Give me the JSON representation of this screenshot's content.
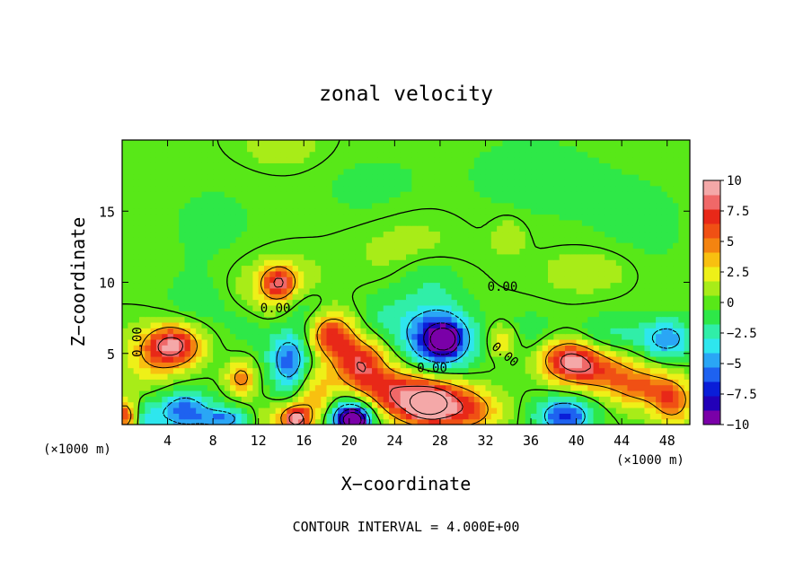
{
  "chart_data": {
    "type": "heatmap",
    "title": "zonal velocity",
    "xlabel": "X−coordinate",
    "ylabel": "Z−coordinate",
    "x_unit_left": "(×1000 m)",
    "x_unit_right": "(×1000 m)",
    "footer": "CONTOUR INTERVAL = 4.000E+00",
    "xlim": [
      0,
      50
    ],
    "ylim": [
      0,
      20
    ],
    "x_ticks": [
      4,
      8,
      12,
      16,
      20,
      24,
      28,
      32,
      36,
      40,
      44,
      48
    ],
    "x_tick_labels": [
      "4",
      "8",
      "12",
      "16",
      "20",
      "24",
      "28",
      "32",
      "36",
      "40",
      "44",
      "48"
    ],
    "y_ticks": [
      5,
      10,
      15
    ],
    "y_tick_labels": [
      "5",
      "10",
      "15"
    ],
    "contour_interval": 4.0,
    "contour_labels": [
      {
        "text": "0.00",
        "x": 1.7,
        "z": 5.8,
        "rotate": -90
      },
      {
        "text": "0.00",
        "x": 13.5,
        "z": 7.9
      },
      {
        "text": "0.00",
        "x": 27.3,
        "z": 3.7
      },
      {
        "text": "0.00",
        "x": 33.5,
        "z": 9.4
      },
      {
        "text": "0.00",
        "x": 33.5,
        "z": 4.7,
        "rotate": 40
      }
    ],
    "colorbar": {
      "min": -10,
      "max": 10,
      "tick_values": [
        10,
        7.5,
        5,
        2.5,
        0,
        -2.5,
        -5,
        -7.5,
        -10
      ],
      "tick_labels": [
        "10",
        "7.5",
        "5",
        "2.5",
        "0",
        "−2.5",
        "−5",
        "−7.5",
        "−10"
      ],
      "colors": [
        "#7a00a8",
        "#2200b8",
        "#0a1ed8",
        "#1e62f0",
        "#2aa6f5",
        "#2ee6ee",
        "#30eea8",
        "#2ee848",
        "#58e818",
        "#a8ec18",
        "#eef018",
        "#f8c010",
        "#f48410",
        "#f05014",
        "#e82818",
        "#f06868",
        "#f4a8a8"
      ]
    },
    "features": [
      {
        "x": 4.5,
        "z": 5.6,
        "sx": 1.7,
        "sz": 1.0,
        "v": 8.5
      },
      {
        "x": 2.5,
        "z": 4.5,
        "sx": 2.0,
        "sz": 1.4,
        "v": 2.5
      },
      {
        "x": 0.3,
        "z": 0.6,
        "sx": 0.8,
        "sz": 0.8,
        "v": 7
      },
      {
        "x": 5.5,
        "z": 1.0,
        "sx": 1.6,
        "sz": 1.0,
        "v": -6
      },
      {
        "x": 2.0,
        "z": 0.5,
        "sx": 1.2,
        "sz": 0.8,
        "v": -3
      },
      {
        "x": 10.5,
        "z": 3.3,
        "sx": 0.9,
        "sz": 0.8,
        "v": 5
      },
      {
        "x": 9.0,
        "z": 0.4,
        "sx": 1.4,
        "sz": 0.6,
        "v": -5
      },
      {
        "x": 14.8,
        "z": 4.5,
        "sx": 1.3,
        "sz": 1.5,
        "v": -6
      },
      {
        "x": 14.0,
        "z": 0.5,
        "sx": 1.6,
        "sz": 0.8,
        "v": 2
      },
      {
        "x": 15.3,
        "z": 0.4,
        "sx": 0.8,
        "sz": 0.6,
        "v": 8
      },
      {
        "x": 13.5,
        "z": 9.3,
        "sx": 2.5,
        "sz": 1.6,
        "v": 3.5
      },
      {
        "x": 13.8,
        "z": 10.0,
        "sx": 1.0,
        "sz": 0.8,
        "v": 6
      },
      {
        "x": 11.5,
        "z": 7.5,
        "sx": 2.0,
        "sz": 1.5,
        "v": -1.5
      },
      {
        "x": 16.0,
        "z": 8.3,
        "sx": 1.5,
        "sz": 1.0,
        "v": -2.5
      },
      {
        "x": 18.5,
        "z": 6.3,
        "sx": 1.4,
        "sz": 1.1,
        "v": 7
      },
      {
        "x": 21.0,
        "z": 4.2,
        "sx": 1.6,
        "sz": 1.3,
        "v": 7.5
      },
      {
        "x": 24.0,
        "z": 2.2,
        "sx": 2.0,
        "sz": 1.2,
        "v": 6
      },
      {
        "x": 20.2,
        "z": 0.5,
        "sx": 1.4,
        "sz": 0.9,
        "v": -9
      },
      {
        "x": 20.3,
        "z": 0.3,
        "sx": 0.6,
        "sz": 0.4,
        "v": -12
      },
      {
        "x": 23.5,
        "z": 7.5,
        "sx": 2.0,
        "sz": 1.4,
        "v": -2
      },
      {
        "x": 28.0,
        "z": 6.0,
        "sx": 2.0,
        "sz": 1.5,
        "v": -9
      },
      {
        "x": 28.3,
        "z": 6.0,
        "sx": 0.7,
        "sz": 0.5,
        "v": -14
      },
      {
        "x": 27.5,
        "z": 1.5,
        "sx": 2.2,
        "sz": 1.3,
        "v": 9
      },
      {
        "x": 27.0,
        "z": 1.5,
        "sx": 0.9,
        "sz": 0.5,
        "v": 12
      },
      {
        "x": 31.0,
        "z": 1.0,
        "sx": 1.8,
        "sz": 1.0,
        "v": 4
      },
      {
        "x": 27.0,
        "z": 10.2,
        "sx": 2.0,
        "sz": 1.2,
        "v": -2
      },
      {
        "x": 25.0,
        "z": 12.5,
        "sx": 3.5,
        "sz": 2.0,
        "v": 1.2
      },
      {
        "x": 33.5,
        "z": 6.0,
        "sx": 1.0,
        "sz": 0.8,
        "v": 3.5
      },
      {
        "x": 35.5,
        "z": 6.5,
        "sx": 2.0,
        "sz": 1.0,
        "v": -1.5
      },
      {
        "x": 39.3,
        "z": 4.6,
        "sx": 1.7,
        "sz": 1.0,
        "v": 7.5
      },
      {
        "x": 42.0,
        "z": 3.8,
        "sx": 2.2,
        "sz": 1.0,
        "v": 5
      },
      {
        "x": 46.0,
        "z": 2.6,
        "sx": 2.2,
        "sz": 1.0,
        "v": 5
      },
      {
        "x": 48.5,
        "z": 1.5,
        "sx": 1.2,
        "sz": 1.0,
        "v": 5
      },
      {
        "x": 39.0,
        "z": 0.6,
        "sx": 1.7,
        "sz": 0.9,
        "v": -7
      },
      {
        "x": 43.0,
        "z": 6.4,
        "sx": 2.2,
        "sz": 0.9,
        "v": -2
      },
      {
        "x": 48.0,
        "z": 6.0,
        "sx": 1.6,
        "sz": 1.0,
        "v": -5
      },
      {
        "x": 41.0,
        "z": 10.8,
        "sx": 2.5,
        "sz": 1.0,
        "v": 2
      },
      {
        "x": 34.0,
        "z": 13.2,
        "sx": 1.0,
        "sz": 0.9,
        "v": 2
      },
      {
        "x": 14.0,
        "z": 19.5,
        "sx": 2.5,
        "sz": 1.0,
        "v": 1.5
      },
      {
        "x": 22.0,
        "z": 16.5,
        "sx": 3.5,
        "sz": 2.0,
        "v": -1
      },
      {
        "x": 36.0,
        "z": 17.5,
        "sx": 5.0,
        "sz": 2.5,
        "v": -1
      },
      {
        "x": 8.0,
        "z": 14.0,
        "sx": 4.0,
        "sz": 3.0,
        "v": -0.8
      },
      {
        "x": 46.0,
        "z": 14.0,
        "sx": 4.0,
        "sz": 3.0,
        "v": -0.8
      },
      {
        "x": 6.5,
        "z": 8.5,
        "sx": 2.0,
        "sz": 1.5,
        "v": -1
      },
      {
        "x": 17.0,
        "z": 2.0,
        "sx": 1.2,
        "sz": 1.5,
        "v": 4
      }
    ]
  }
}
